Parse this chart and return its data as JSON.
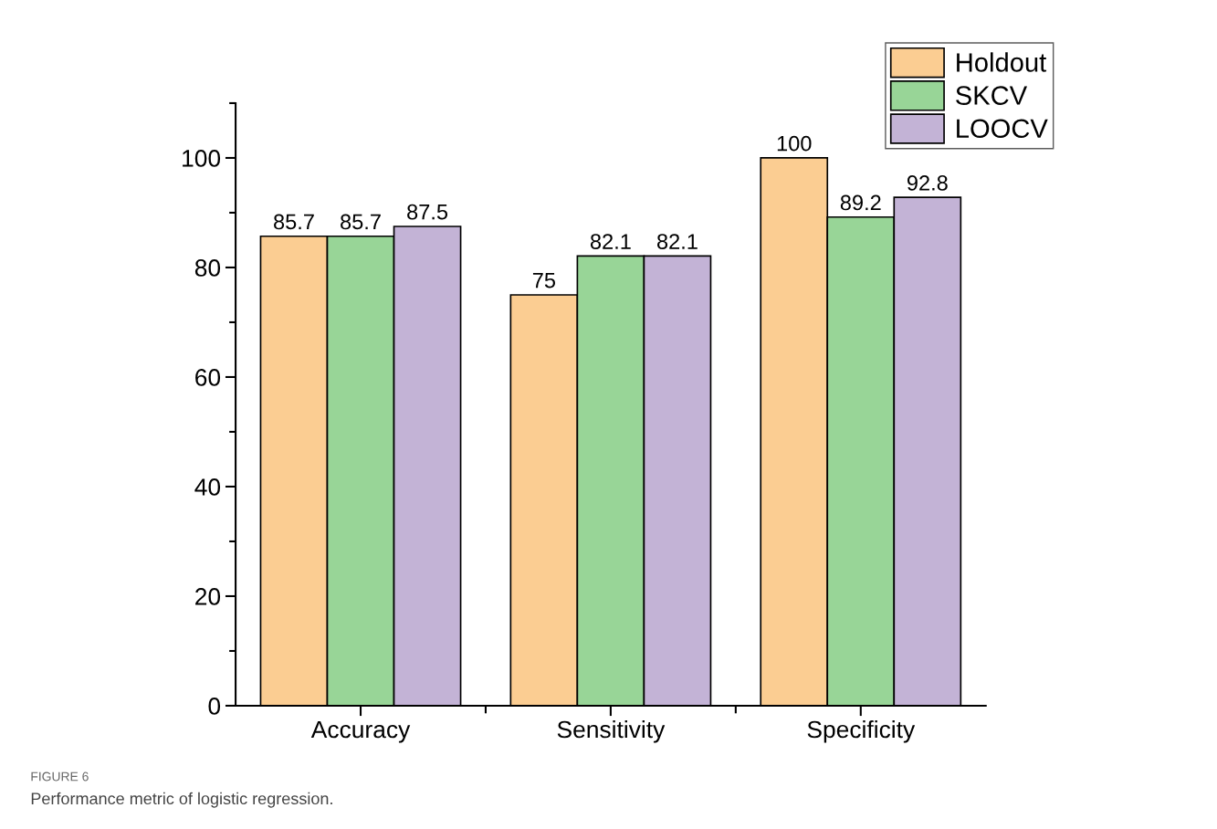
{
  "chart_data": {
    "type": "bar",
    "categories": [
      "Accuracy",
      "Sensitivity",
      "Specificity"
    ],
    "series": [
      {
        "name": "Holdout",
        "color": "#fbcd92",
        "values": [
          85.7,
          75,
          100
        ]
      },
      {
        "name": "SKCV",
        "color": "#98d597",
        "values": [
          85.7,
          82.1,
          89.2
        ]
      },
      {
        "name": "LOOCV",
        "color": "#c3b3d6",
        "values": [
          87.5,
          82.1,
          92.8
        ]
      }
    ],
    "ylim": [
      0,
      110
    ],
    "yticks": [
      0,
      20,
      40,
      60,
      80,
      100
    ],
    "data_labels": true,
    "legend": "top right",
    "grid": false,
    "annotations": [
      "FIGURE 6",
      "Performance metric of logistic regression."
    ]
  }
}
